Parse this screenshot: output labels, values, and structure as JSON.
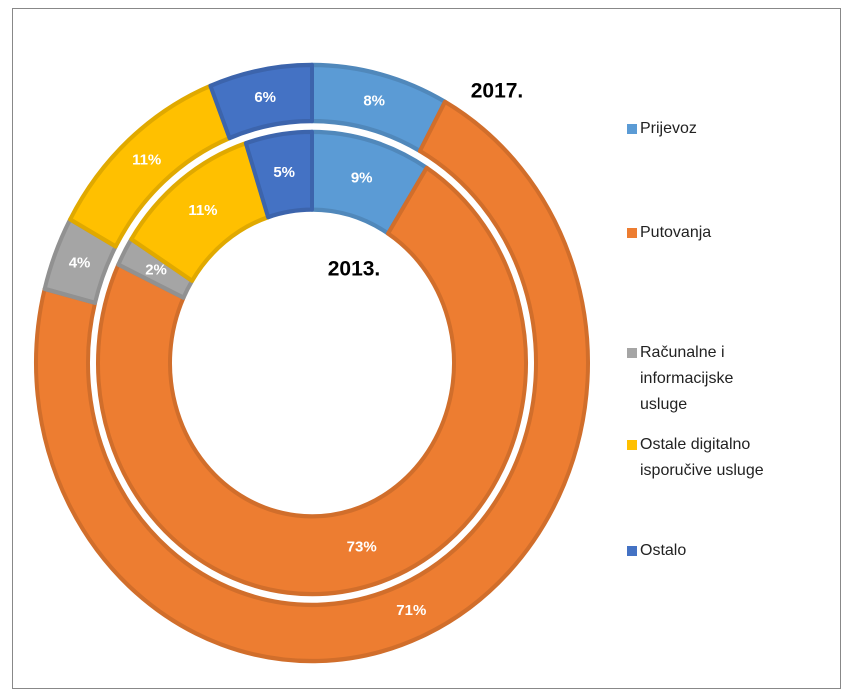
{
  "chart_data": {
    "type": "donut",
    "categories": [
      "Prijevoz",
      "Putovanja",
      "Računalne i informacijske usluge",
      "Ostale digitalno isporučive usluge",
      "Ostalo"
    ],
    "colors": [
      "#5b9bd5",
      "#ed7d31",
      "#a5a5a5",
      "#ffc000",
      "#4472c4"
    ],
    "series": [
      {
        "name": "2017.",
        "values": [
          8,
          71,
          4,
          11,
          6
        ],
        "value_labels": [
          "8%",
          "71%",
          "4%",
          "11%",
          "6%"
        ]
      },
      {
        "name": "2013.",
        "values": [
          9,
          73,
          2,
          11,
          5
        ],
        "value_labels": [
          "9%",
          "73%",
          "2%",
          "11%",
          "5%"
        ]
      }
    ]
  }
}
